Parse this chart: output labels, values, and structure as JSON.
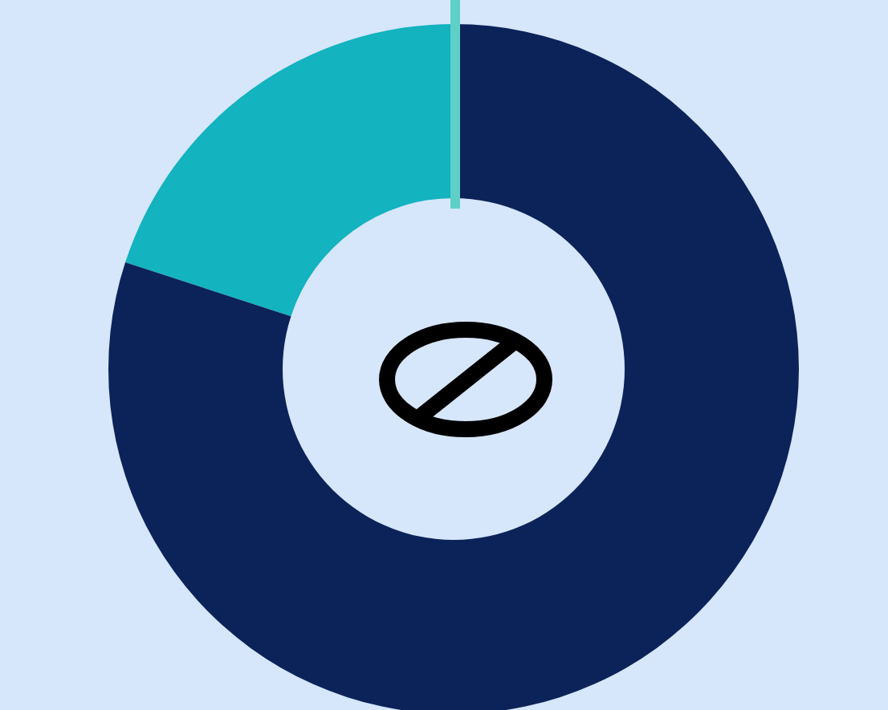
{
  "chart_data": {
    "type": "donut",
    "categories": [
      null,
      null
    ],
    "values": [
      20,
      80
    ],
    "colors": [
      "#13b3bf",
      "#0c2359"
    ]
  }
}
